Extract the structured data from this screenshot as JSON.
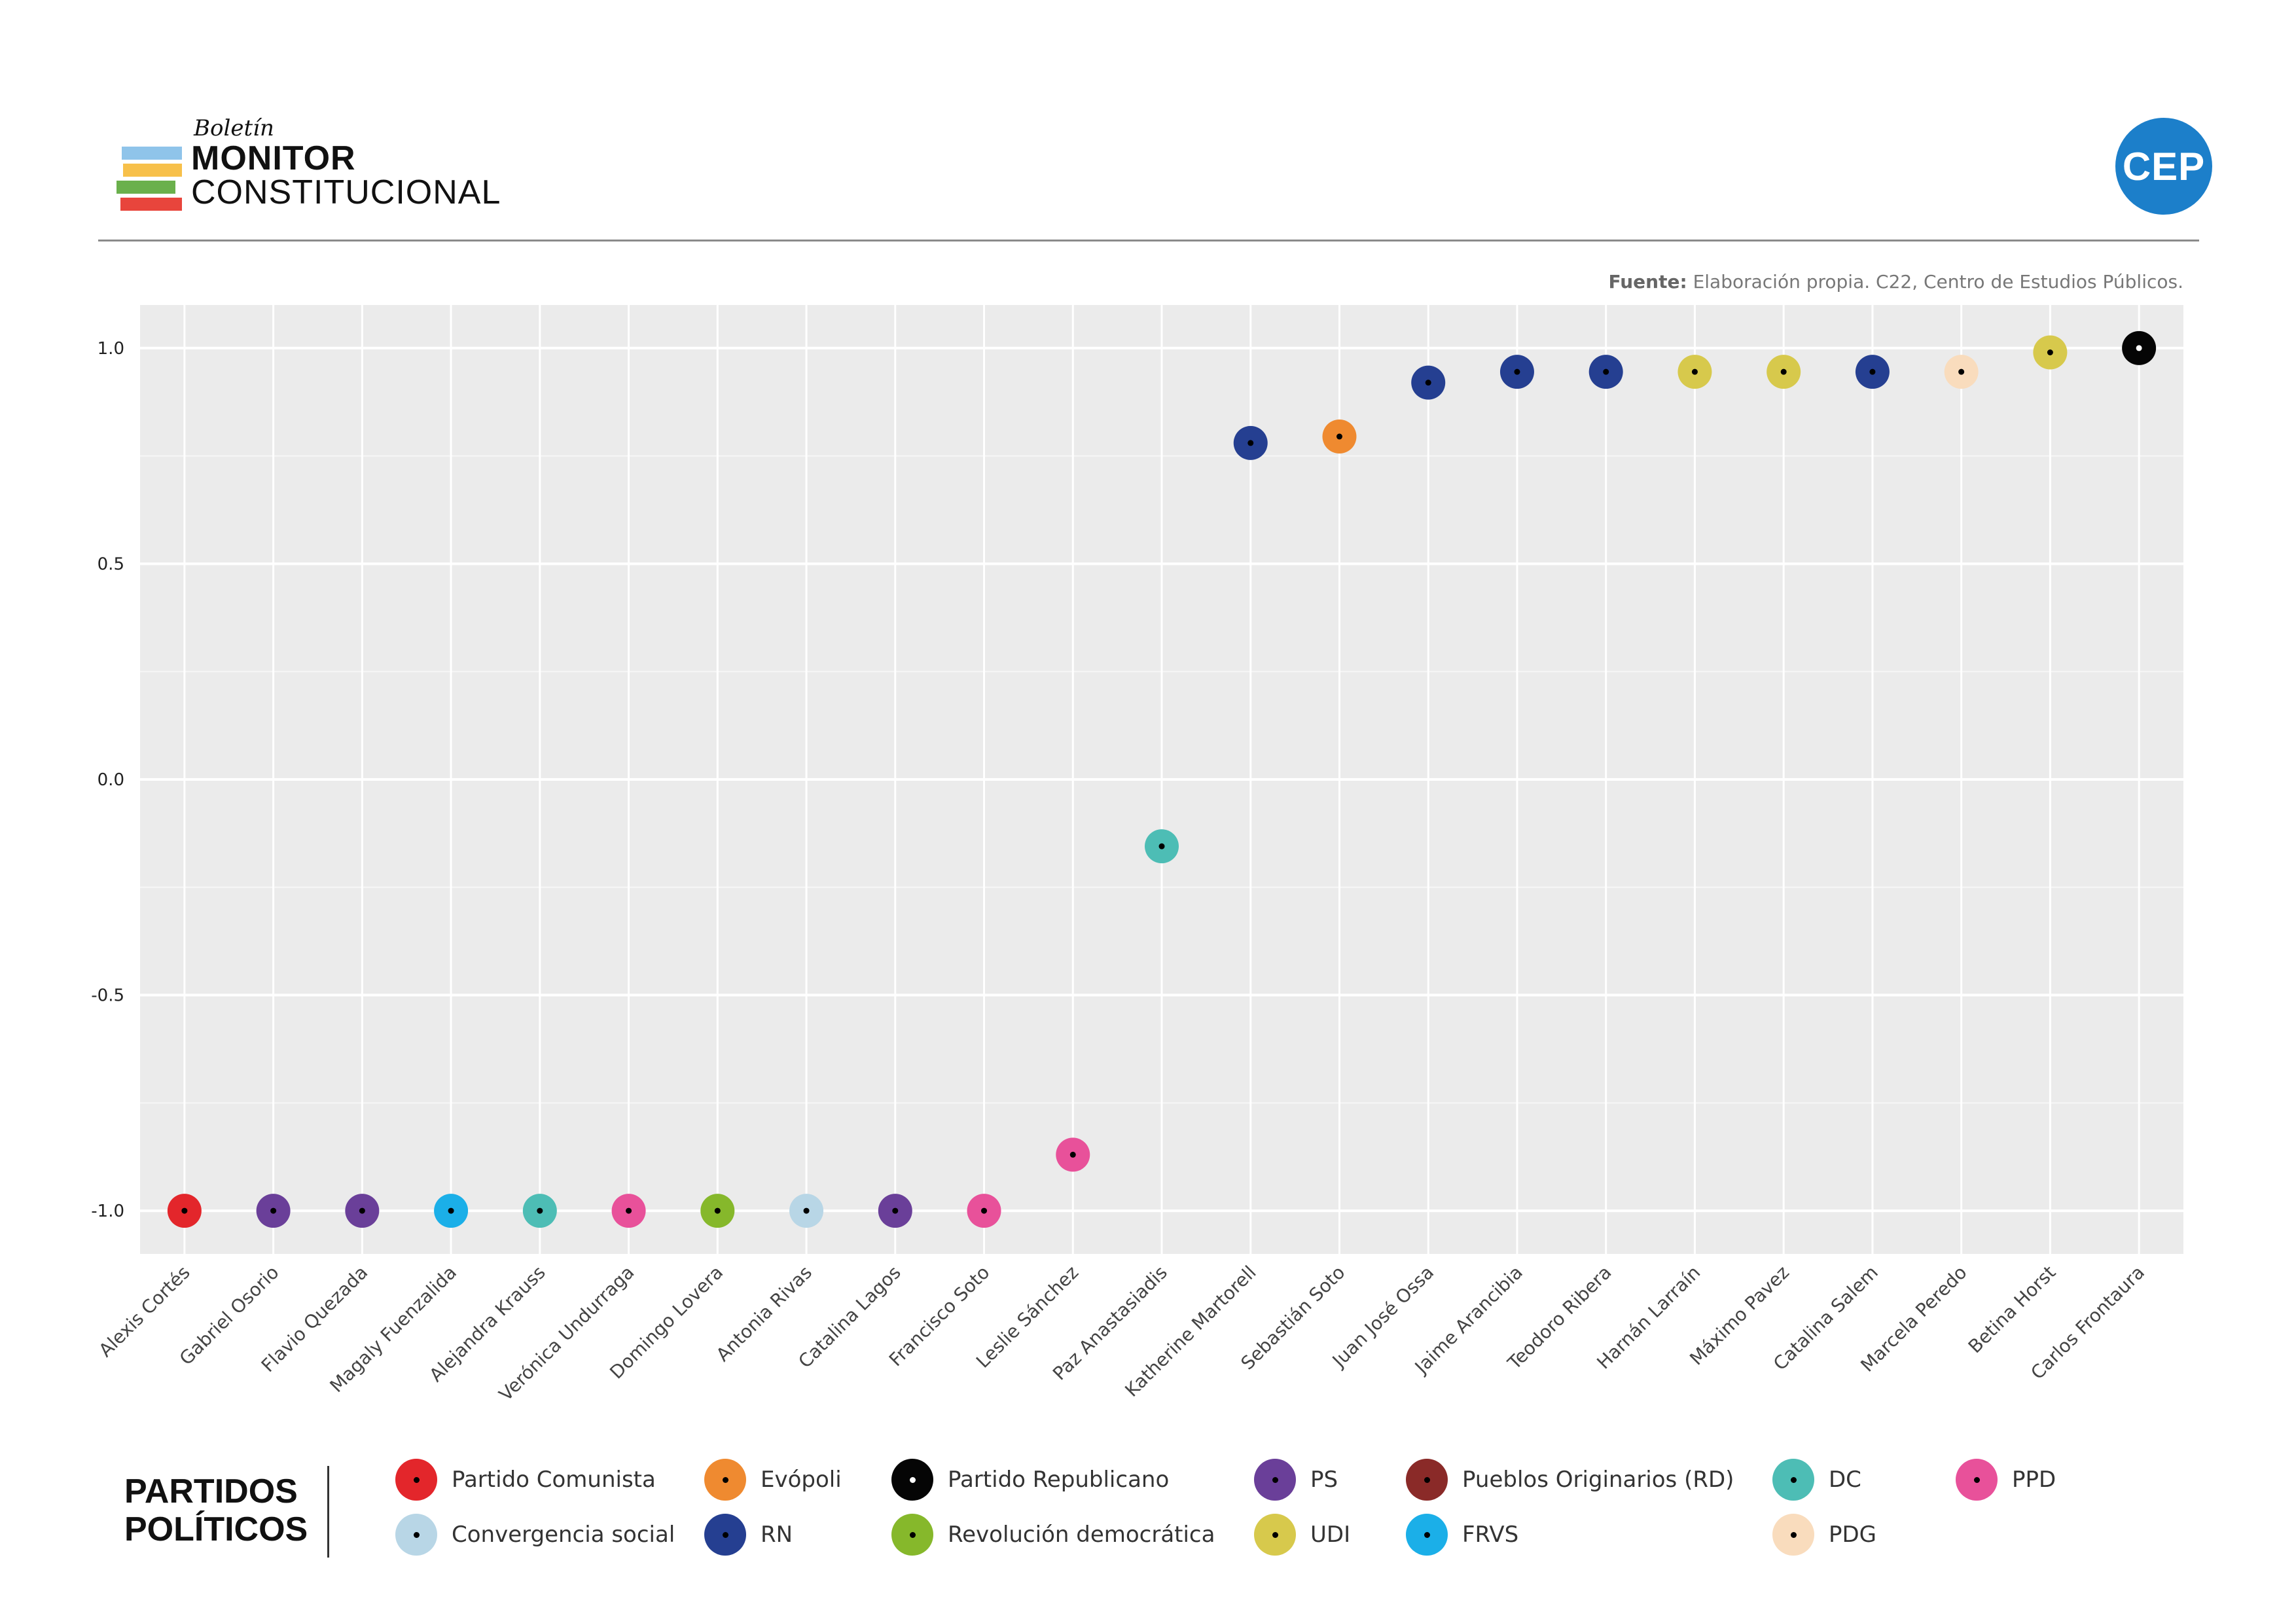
{
  "header": {
    "boletin": "Boletín",
    "monitor": "MONITOR",
    "constitucional": "CONSTITUCIONAL",
    "logo_bar_colors": [
      "#8fc4ea",
      "#f7c04a",
      "#6ab04c",
      "#e8453c"
    ],
    "cep": "CEP",
    "cep_color": "#1c7fca"
  },
  "source": {
    "label": "Fuente:",
    "text": "Elaboración propia. C22, Centro de Estudios Públicos."
  },
  "chart_data": {
    "type": "scatter",
    "ylim": [
      -1.1,
      1.1
    ],
    "yticks": [
      1.0,
      0.5,
      0.0,
      -0.5,
      -1.0
    ],
    "ytick_labels": [
      "1.0",
      "0.5",
      "0.0",
      "-0.5",
      "-1.0"
    ],
    "grid": true,
    "background": "#ebebeb",
    "categories": [
      "Alexis Cortés",
      "Gabriel Osorio",
      "Flavio Quezada",
      "Magaly Fuenzalida",
      "Alejandra Krauss",
      "Verónica Undurraga",
      "Domingo Lovera",
      "Antonia Rivas",
      "Catalina Lagos",
      "Francisco Soto",
      "Leslie Sánchez",
      "Paz Anastasiadis",
      "Katherine Martorell",
      "Sebastián Soto",
      "Juan José Ossa",
      "Jaime Arancibia",
      "Teodoro Ribera",
      "Harnán Larraín",
      "Máximo Pavez",
      "Catalina Salem",
      "Marcela Peredo",
      "Betina Horst",
      "Carlos Frontaura"
    ],
    "values": [
      -1.0,
      -1.0,
      -1.0,
      -1.0,
      -1.0,
      -1.0,
      -1.0,
      -1.0,
      -1.0,
      -1.0,
      -0.87,
      -0.155,
      0.78,
      0.795,
      0.92,
      0.945,
      0.945,
      0.945,
      0.945,
      0.945,
      0.945,
      0.99,
      1.0
    ],
    "parties": [
      "Partido Comunista",
      "PS",
      "PS",
      "FRVS",
      "DC",
      "PPD",
      "Revolución democrática",
      "Convergencia social",
      "PS",
      "PPD",
      "PPD",
      "DC",
      "RN",
      "Evópoli",
      "RN",
      "RN",
      "RN",
      "UDI",
      "UDI",
      "RN",
      "PDG",
      "UDI",
      "Partido Republicano"
    ]
  },
  "legend": {
    "title_line1": "PARTIDOS",
    "title_line2": "POLÍTICOS",
    "items": [
      {
        "name": "Partido Comunista",
        "color": "#e3262b"
      },
      {
        "name": "Convergencia social",
        "color": "#b8d6e6"
      },
      {
        "name": "Evópoli",
        "color": "#ef8a30"
      },
      {
        "name": "RN",
        "color": "#253f91"
      },
      {
        "name": "Partido Republicano",
        "color": "#050505"
      },
      {
        "name": "Revolución democrática",
        "color": "#86b82b"
      },
      {
        "name": "PS",
        "color": "#6a3f99"
      },
      {
        "name": "UDI",
        "color": "#d7c94c"
      },
      {
        "name": "Pueblos Originarios (RD)",
        "color": "#8a2a28"
      },
      {
        "name": "FRVS",
        "color": "#1bafe8"
      },
      {
        "name": "DC",
        "color": "#4dbdb5"
      },
      {
        "name": "PDG",
        "color": "#f9dcbd"
      },
      {
        "name": "PPD",
        "color": "#e8519a"
      }
    ]
  }
}
